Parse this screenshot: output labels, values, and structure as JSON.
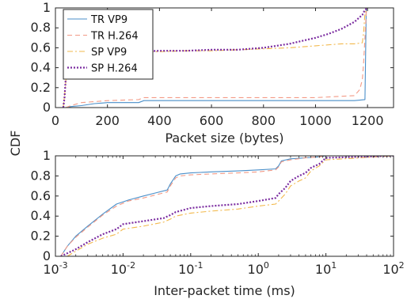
{
  "figure": {
    "ylabel": "CDF"
  },
  "chart_data": [
    {
      "type": "line",
      "xlabel": "Packet size (bytes)",
      "ylabel": "",
      "xlim": [
        0,
        1300
      ],
      "ylim": [
        0,
        1
      ],
      "x_scale": "linear",
      "x_ticks": [
        0,
        200,
        400,
        600,
        800,
        1000,
        1200
      ],
      "x_tick_labels": [
        "0",
        "200",
        "400",
        "600",
        "800",
        "1000",
        "1200"
      ],
      "y_ticks": [
        0,
        0.2,
        0.4,
        0.6,
        0.8,
        1
      ],
      "y_tick_labels": [
        "0",
        "0.2",
        "0.4",
        "0.6",
        "0.8",
        "1"
      ],
      "grid": false,
      "legend": "top-left",
      "series": [
        {
          "name": "TR VP9",
          "color": "#4a8fc9",
          "style": "solid",
          "x": [
            40,
            60,
            100,
            150,
            200,
            320,
            340,
            600,
            900,
            1150,
            1190,
            1192,
            1195,
            1200
          ],
          "y": [
            0,
            0.01,
            0.02,
            0.04,
            0.05,
            0.05,
            0.07,
            0.07,
            0.07,
            0.07,
            0.08,
            0.4,
            0.98,
            1.0
          ]
        },
        {
          "name": "TR H.264",
          "color": "#f39a86",
          "style": "dashed",
          "x": [
            40,
            60,
            100,
            200,
            320,
            340,
            600,
            1000,
            1150,
            1170,
            1180,
            1185,
            1190,
            1195,
            1200
          ],
          "y": [
            0,
            0.02,
            0.05,
            0.07,
            0.08,
            0.1,
            0.1,
            0.1,
            0.12,
            0.18,
            0.28,
            0.45,
            0.7,
            0.95,
            1.0
          ]
        },
        {
          "name": "SP VP9",
          "color": "#f2b84b",
          "style": "dashdot",
          "x": [
            30,
            38,
            45,
            50,
            60,
            100,
            200,
            300,
            400,
            500,
            600,
            700,
            800,
            900,
            1000,
            1100,
            1150,
            1180,
            1185,
            1190,
            1200
          ],
          "y": [
            0,
            0.2,
            0.45,
            0.5,
            0.52,
            0.54,
            0.55,
            0.56,
            0.56,
            0.57,
            0.57,
            0.58,
            0.59,
            0.6,
            0.62,
            0.64,
            0.64,
            0.65,
            0.75,
            0.95,
            1.0
          ]
        },
        {
          "name": "SP H.264",
          "color": "#7b2ca0",
          "style": "dotted",
          "x": [
            30,
            35,
            40,
            45,
            55,
            100,
            200,
            300,
            400,
            500,
            600,
            700,
            800,
            850,
            900,
            950,
            1000,
            1050,
            1100,
            1150,
            1180,
            1190,
            1200
          ],
          "y": [
            0,
            0.1,
            0.3,
            0.52,
            0.54,
            0.55,
            0.55,
            0.56,
            0.57,
            0.57,
            0.58,
            0.58,
            0.6,
            0.62,
            0.64,
            0.67,
            0.7,
            0.74,
            0.79,
            0.86,
            0.93,
            0.98,
            1.0
          ]
        }
      ]
    },
    {
      "type": "line",
      "xlabel": "Inter-packet time (ms)",
      "ylabel": "",
      "xlim": [
        0.001,
        100
      ],
      "ylim": [
        0,
        1
      ],
      "x_scale": "log",
      "x_ticks": [
        0.001,
        0.01,
        0.1,
        1,
        10,
        100
      ],
      "x_tick_labels": [
        [
          "10",
          "-3"
        ],
        [
          "10",
          "-2"
        ],
        [
          "10",
          "-1"
        ],
        [
          "10",
          "0"
        ],
        [
          "10",
          "1"
        ],
        [
          "10",
          "2"
        ]
      ],
      "y_ticks": [
        0,
        0.2,
        0.4,
        0.6,
        0.8,
        1
      ],
      "y_tick_labels": [
        "0",
        "0.2",
        "0.4",
        "0.6",
        "0.8",
        "1"
      ],
      "grid": false,
      "series": [
        {
          "name": "TR VP9",
          "color": "#4a8fc9",
          "style": "solid",
          "x": [
            0.0012,
            0.0015,
            0.002,
            0.003,
            0.005,
            0.008,
            0.012,
            0.02,
            0.03,
            0.045,
            0.05,
            0.06,
            0.07,
            0.1,
            0.2,
            0.5,
            1.0,
            1.8,
            2.0,
            2.2,
            3.0,
            5.0,
            8.0,
            10.0,
            100.0
          ],
          "y": [
            0.0,
            0.1,
            0.2,
            0.3,
            0.42,
            0.52,
            0.56,
            0.6,
            0.63,
            0.66,
            0.72,
            0.8,
            0.82,
            0.83,
            0.84,
            0.85,
            0.86,
            0.87,
            0.9,
            0.95,
            0.97,
            0.98,
            0.99,
            1.0,
            1.0
          ]
        },
        {
          "name": "TR H.264",
          "color": "#f39a86",
          "style": "dashed",
          "x": [
            0.0012,
            0.0015,
            0.002,
            0.003,
            0.005,
            0.008,
            0.012,
            0.02,
            0.03,
            0.045,
            0.05,
            0.06,
            0.07,
            0.1,
            0.2,
            0.5,
            1.0,
            1.8,
            2.0,
            2.2,
            3.0,
            5.0,
            8.0,
            10.0,
            100.0
          ],
          "y": [
            0.0,
            0.1,
            0.19,
            0.29,
            0.41,
            0.5,
            0.55,
            0.58,
            0.61,
            0.64,
            0.7,
            0.78,
            0.8,
            0.81,
            0.82,
            0.83,
            0.84,
            0.86,
            0.89,
            0.94,
            0.96,
            0.98,
            0.99,
            1.0,
            1.0
          ]
        },
        {
          "name": "SP VP9",
          "color": "#f2b84b",
          "style": "dashdot",
          "x": [
            0.0015,
            0.002,
            0.003,
            0.005,
            0.008,
            0.01,
            0.02,
            0.04,
            0.05,
            0.06,
            0.1,
            0.2,
            0.5,
            1.0,
            1.8,
            2.0,
            2.5,
            3.0,
            4.0,
            5.0,
            6.0,
            8.0,
            10.0,
            100.0
          ],
          "y": [
            0.0,
            0.05,
            0.12,
            0.18,
            0.22,
            0.27,
            0.3,
            0.34,
            0.37,
            0.4,
            0.43,
            0.45,
            0.47,
            0.5,
            0.52,
            0.55,
            0.62,
            0.7,
            0.75,
            0.78,
            0.85,
            0.9,
            0.96,
            1.0
          ]
        },
        {
          "name": "SP H.264",
          "color": "#7b2ca0",
          "style": "dotted",
          "x": [
            0.0012,
            0.002,
            0.003,
            0.005,
            0.008,
            0.01,
            0.02,
            0.04,
            0.05,
            0.06,
            0.1,
            0.2,
            0.5,
            1.0,
            1.8,
            2.0,
            2.5,
            3.0,
            4.0,
            5.0,
            6.0,
            8.0,
            10.0,
            100.0
          ],
          "y": [
            0.0,
            0.07,
            0.14,
            0.22,
            0.27,
            0.32,
            0.35,
            0.38,
            0.41,
            0.44,
            0.48,
            0.5,
            0.52,
            0.55,
            0.58,
            0.62,
            0.68,
            0.75,
            0.8,
            0.83,
            0.88,
            0.92,
            0.98,
            1.0
          ]
        }
      ]
    }
  ]
}
